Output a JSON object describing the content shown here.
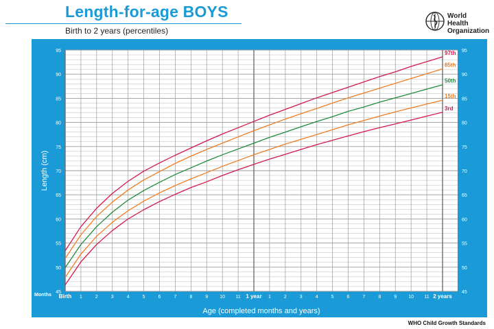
{
  "header": {
    "title": "Length-for-age BOYS",
    "subtitle": "Birth to 2 years (percentiles)"
  },
  "logo": {
    "icon": "who-emblem-icon",
    "line1": "World Health",
    "line2": "Organization"
  },
  "footer": {
    "text": "WHO Child Growth Standards"
  },
  "colors": {
    "brand_blue": "#1a9bd7",
    "grid": "#9a9a9a",
    "p3": "#d6174b",
    "p15": "#ef7d22",
    "p50": "#1f8a3a",
    "p85": "#ef7d22",
    "p97": "#d6174b"
  },
  "chart_data": {
    "type": "line",
    "ylabel": "Length (cm)",
    "xlabel": "Age (completed months and years)",
    "x_unit_label": "Months",
    "ylim": [
      45,
      95
    ],
    "xlim": [
      0,
      24
    ],
    "y_ticks": [
      45,
      50,
      55,
      60,
      65,
      70,
      75,
      80,
      85,
      90,
      95
    ],
    "x_ticks": [
      {
        "x": 0,
        "label": "Birth",
        "bold": true
      },
      {
        "x": 1,
        "label": "1"
      },
      {
        "x": 2,
        "label": "2"
      },
      {
        "x": 3,
        "label": "3"
      },
      {
        "x": 4,
        "label": "4"
      },
      {
        "x": 5,
        "label": "5"
      },
      {
        "x": 6,
        "label": "6"
      },
      {
        "x": 7,
        "label": "7"
      },
      {
        "x": 8,
        "label": "8"
      },
      {
        "x": 9,
        "label": "9"
      },
      {
        "x": 10,
        "label": "10"
      },
      {
        "x": 11,
        "label": "11"
      },
      {
        "x": 12,
        "label": "1 year",
        "bold": true
      },
      {
        "x": 13,
        "label": "1"
      },
      {
        "x": 14,
        "label": "2"
      },
      {
        "x": 15,
        "label": "3"
      },
      {
        "x": 16,
        "label": "4"
      },
      {
        "x": 17,
        "label": "5"
      },
      {
        "x": 18,
        "label": "6"
      },
      {
        "x": 19,
        "label": "7"
      },
      {
        "x": 20,
        "label": "8"
      },
      {
        "x": 21,
        "label": "9"
      },
      {
        "x": 22,
        "label": "10"
      },
      {
        "x": 23,
        "label": "11"
      },
      {
        "x": 24,
        "label": "2 years",
        "bold": true
      }
    ],
    "grid": true,
    "x": [
      0,
      1,
      2,
      3,
      4,
      5,
      6,
      7,
      8,
      9,
      10,
      11,
      12,
      13,
      14,
      15,
      16,
      17,
      18,
      19,
      20,
      21,
      22,
      23,
      24
    ],
    "series": [
      {
        "name": "3rd",
        "color_key": "p3",
        "values": [
          46.3,
          51.1,
          54.7,
          57.6,
          60.0,
          61.9,
          63.6,
          65.1,
          66.5,
          67.7,
          69.0,
          70.2,
          71.3,
          72.4,
          73.4,
          74.4,
          75.4,
          76.3,
          77.2,
          78.1,
          78.9,
          79.7,
          80.5,
          81.3,
          82.1
        ]
      },
      {
        "name": "15th",
        "color_key": "p15",
        "values": [
          47.9,
          52.7,
          56.4,
          59.3,
          61.7,
          63.7,
          65.4,
          66.9,
          68.3,
          69.6,
          70.9,
          72.1,
          73.3,
          74.4,
          75.5,
          76.5,
          77.5,
          78.5,
          79.5,
          80.4,
          81.3,
          82.2,
          83.0,
          83.8,
          84.6
        ]
      },
      {
        "name": "50th",
        "color_key": "p50",
        "values": [
          49.9,
          54.7,
          58.4,
          61.4,
          63.9,
          65.9,
          67.6,
          69.2,
          70.6,
          72.0,
          73.3,
          74.5,
          75.7,
          76.9,
          78.0,
          79.1,
          80.2,
          81.2,
          82.3,
          83.2,
          84.2,
          85.1,
          86.0,
          86.9,
          87.8
        ]
      },
      {
        "name": "85th",
        "color_key": "p85",
        "values": [
          51.8,
          56.7,
          60.5,
          63.5,
          66.0,
          68.1,
          69.8,
          71.5,
          73.0,
          74.4,
          75.7,
          77.0,
          78.3,
          79.5,
          80.7,
          81.8,
          82.9,
          84.0,
          85.1,
          86.1,
          87.1,
          88.1,
          89.1,
          90.1,
          91.1
        ]
      },
      {
        "name": "97th",
        "color_key": "p97",
        "values": [
          53.4,
          58.4,
          62.2,
          65.3,
          67.8,
          69.9,
          71.6,
          73.2,
          74.7,
          76.2,
          77.6,
          78.9,
          80.2,
          81.5,
          82.7,
          83.9,
          85.1,
          86.2,
          87.3,
          88.4,
          89.5,
          90.5,
          91.6,
          92.6,
          93.6
        ]
      }
    ]
  }
}
